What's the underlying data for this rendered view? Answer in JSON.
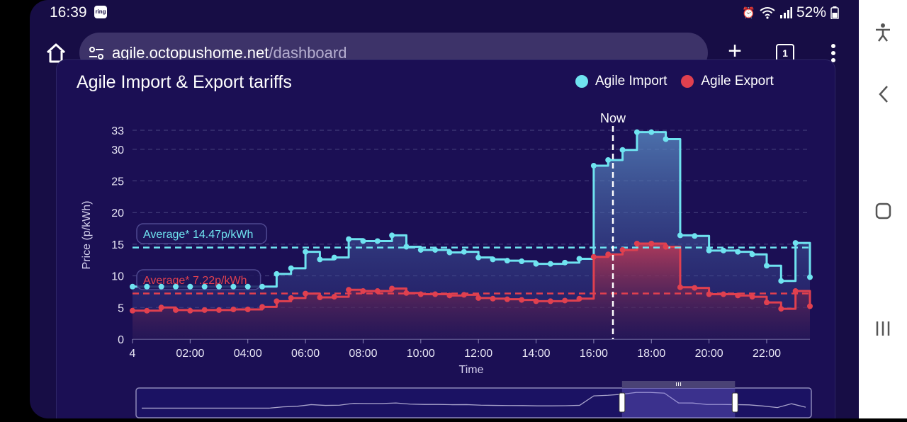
{
  "status": {
    "time": "16:39",
    "ring": "ring",
    "battery": "52%"
  },
  "browser": {
    "url_host": "agile.octopushome.net",
    "url_path": "/dashboard",
    "tab_count": "1"
  },
  "chart_title": "Agile Import & Export tariffs",
  "colors": {
    "import": "#6fe3f0",
    "export": "#e0404f",
    "background": "#170d45"
  },
  "chart_data": {
    "type": "line",
    "step": true,
    "title": "Agile Import & Export tariffs",
    "xlabel": "Time",
    "ylabel": "Price (p/kWh)",
    "x_ticks": [
      "4",
      "02:00",
      "04:00",
      "06:00",
      "08:00",
      "10:00",
      "12:00",
      "14:00",
      "16:00",
      "18:00",
      "20:00",
      "22:00"
    ],
    "y_ticks": [
      0,
      5,
      10,
      15,
      20,
      25,
      30,
      33
    ],
    "ylim": [
      0,
      33
    ],
    "now_label": "Now",
    "now_time": "16:40",
    "grid": "horizontal",
    "legend": "top-right",
    "averages": [
      {
        "label": "Average* 14.47p/kWh",
        "value": 14.47,
        "series": "Agile Import"
      },
      {
        "label": "Average* 7.22p/kWh",
        "value": 7.22,
        "series": "Agile Export"
      }
    ],
    "x": [
      "00:00",
      "00:30",
      "01:00",
      "01:30",
      "02:00",
      "02:30",
      "03:00",
      "03:30",
      "04:00",
      "04:30",
      "05:00",
      "05:30",
      "06:00",
      "06:30",
      "07:00",
      "07:30",
      "08:00",
      "08:30",
      "09:00",
      "09:30",
      "10:00",
      "10:30",
      "11:00",
      "11:30",
      "12:00",
      "12:30",
      "13:00",
      "13:30",
      "14:00",
      "14:30",
      "15:00",
      "15:30",
      "16:00",
      "16:30",
      "17:00",
      "17:30",
      "18:00",
      "18:30",
      "19:00",
      "19:30",
      "20:00",
      "20:30",
      "21:00",
      "21:30",
      "22:00",
      "22:30",
      "23:00",
      "23:30"
    ],
    "series": [
      {
        "name": "Agile Import",
        "values": [
          8.3,
          8.3,
          8.3,
          8.3,
          8.3,
          8.3,
          8.3,
          8.3,
          8.3,
          8.3,
          10.3,
          11.2,
          13.8,
          12.6,
          12.9,
          15.8,
          15.5,
          15.5,
          16.4,
          14.6,
          14.1,
          14.1,
          13.7,
          13.8,
          12.9,
          12.6,
          12.4,
          12.3,
          11.9,
          11.9,
          12.1,
          12.7,
          27.4,
          28.3,
          29.9,
          32.7,
          32.7,
          31.6,
          16.4,
          16.3,
          14.0,
          14.0,
          13.8,
          13.4,
          11.6,
          9.2,
          15.2,
          9.8
        ]
      },
      {
        "name": "Agile Export",
        "values": [
          4.5,
          4.5,
          5.0,
          4.6,
          4.5,
          4.6,
          4.6,
          4.7,
          4.7,
          5.1,
          6.0,
          6.5,
          7.2,
          6.6,
          6.7,
          7.8,
          7.6,
          7.6,
          8.0,
          7.3,
          7.1,
          7.1,
          6.9,
          7.0,
          6.5,
          6.4,
          6.3,
          6.2,
          6.0,
          6.0,
          6.1,
          6.4,
          13.0,
          13.4,
          14.1,
          15.1,
          15.1,
          14.6,
          8.2,
          8.1,
          7.1,
          7.1,
          6.9,
          6.7,
          5.8,
          4.8,
          7.6,
          5.2
        ]
      }
    ]
  }
}
